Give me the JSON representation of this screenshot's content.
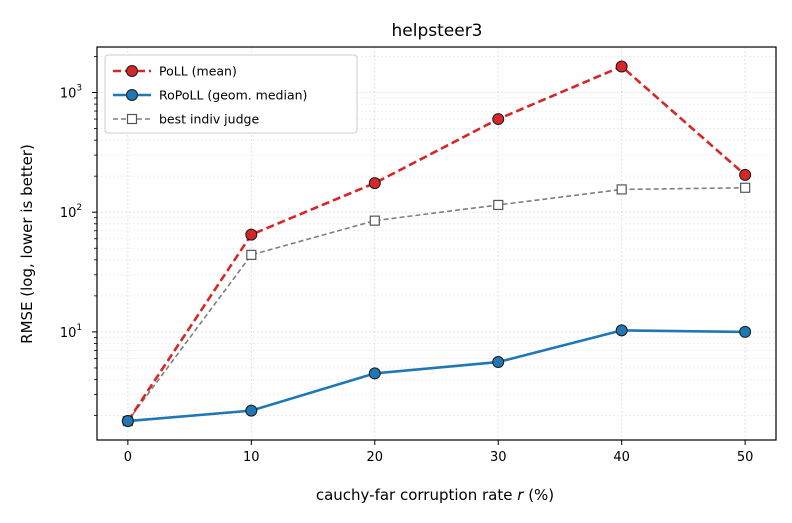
{
  "chart_data": {
    "type": "line",
    "title": "helpsteer3",
    "xlabel_prefix": "cauchy-far corruption rate ",
    "xlabel_var": "r",
    "xlabel_suffix": " (%)",
    "ylabel": "RMSE (log, lower is better)",
    "y_scale": "log",
    "xlim": [
      -2.5,
      52.5
    ],
    "ylim": [
      1.25,
      2400
    ],
    "grid": true,
    "legend_position": "top-left",
    "x": [
      0,
      10,
      20,
      30,
      40,
      50
    ],
    "x_ticks": [
      0,
      10,
      20,
      30,
      40,
      50
    ],
    "x_tick_labels": [
      "0",
      "10",
      "20",
      "30",
      "40",
      "50"
    ],
    "y_major_ticks": [
      10,
      100,
      1000
    ],
    "y_tick_base": "10",
    "y_tick_exponents": [
      "1",
      "2",
      "3"
    ],
    "series": [
      {
        "name": "PoLL (mean)",
        "values": [
          1.8,
          65,
          175,
          600,
          1650,
          205
        ],
        "color": "#d62728",
        "line_style": "dashed",
        "marker": "circle-filled"
      },
      {
        "name": "RoPoLL (geom. median)",
        "values": [
          1.8,
          2.2,
          4.5,
          5.6,
          10.3,
          10.0
        ],
        "color": "#1f77b4",
        "line_style": "solid",
        "marker": "circle-filled"
      },
      {
        "name": "best indiv judge",
        "values": [
          1.8,
          44,
          85,
          115,
          155,
          160
        ],
        "color": "#7f7f7f",
        "line_style": "dashed",
        "marker": "square-open"
      }
    ]
  }
}
